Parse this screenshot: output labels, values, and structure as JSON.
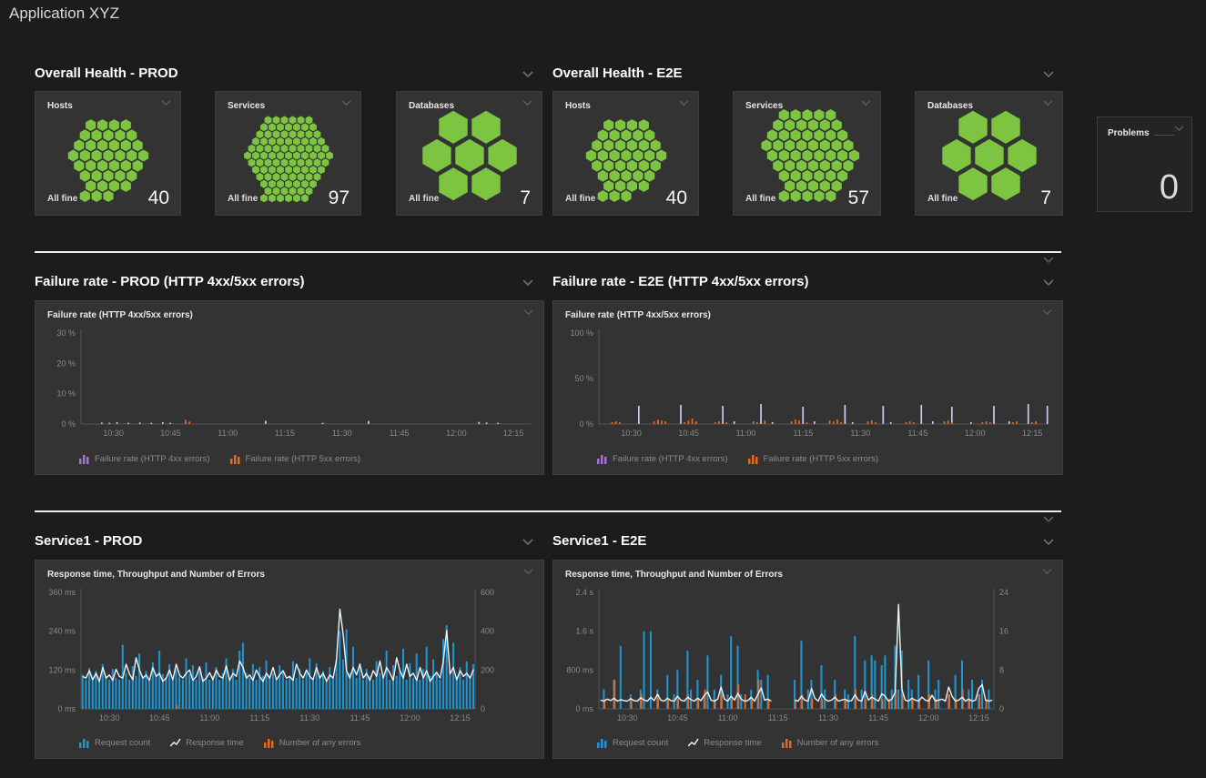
{
  "app": {
    "title": "Application XYZ"
  },
  "colors": {
    "green": "#7dc540",
    "blue": "#1f96d4",
    "orange": "#e8671e",
    "purple_bar": "#d3c8ee",
    "purple_icon": "#a573d6",
    "line": "#e9f4fa",
    "axis": "#565656",
    "tick_text": "#8a8a8a"
  },
  "sections": {
    "health_prod": {
      "title": "Overall Health - PROD",
      "tiles": [
        {
          "title": "Hosts",
          "status": "All fine",
          "count": 40
        },
        {
          "title": "Services",
          "status": "All fine",
          "count": 97
        },
        {
          "title": "Databases",
          "status": "All fine",
          "count": 7
        }
      ]
    },
    "health_e2e": {
      "title": "Overall Health - E2E",
      "tiles": [
        {
          "title": "Hosts",
          "status": "All fine",
          "count": 40
        },
        {
          "title": "Services",
          "status": "All fine",
          "count": 57
        },
        {
          "title": "Databases",
          "status": "All fine",
          "count": 7
        }
      ]
    },
    "problems": {
      "title": "Problems",
      "value": "0"
    },
    "failure_prod": {
      "title": "Failure rate - PROD (HTTP 4xx/5xx errors)"
    },
    "failure_e2e": {
      "title": "Failure rate - E2E (HTTP 4xx/5xx errors)"
    },
    "service_prod": {
      "title": "Service1 - PROD"
    },
    "service_e2e": {
      "title": "Service1 - E2E"
    }
  },
  "chart_data": [
    {
      "id": "failure_prod",
      "type": "bar",
      "kind": "failure",
      "title": "Failure rate (HTTP 4xx/5xx errors)",
      "x_start": "10:22",
      "x_end": "12:20",
      "buckets": 118,
      "x_ticks": [
        "10:30",
        "10:45",
        "11:00",
        "11:15",
        "11:30",
        "11:45",
        "12:00",
        "12:15"
      ],
      "x_tick_idx": [
        8,
        23,
        38,
        53,
        68,
        83,
        98,
        113
      ],
      "y_ticks": [
        "0 %",
        "10 %",
        "20 %",
        "30 %"
      ],
      "y_max": 30,
      "series": [
        {
          "name": "Failure rate (HTTP 4xx errors)",
          "color": "purple_bar",
          "points": [
            [
              5,
              0.5
            ],
            [
              7,
              0.4
            ],
            [
              9,
              0.6
            ],
            [
              12,
              0.4
            ],
            [
              15,
              0.5
            ],
            [
              18,
              0.4
            ],
            [
              21,
              0.6
            ],
            [
              23,
              0.4
            ],
            [
              48,
              1.1
            ],
            [
              63,
              0.4
            ],
            [
              75,
              1.0
            ],
            [
              104,
              0.7
            ],
            [
              106,
              0.5
            ],
            [
              109,
              0.4
            ]
          ]
        },
        {
          "name": "Failure rate (HTTP 5xx errors)",
          "color": "orange",
          "points": [
            [
              27,
              1.4
            ],
            [
              28,
              0.8
            ]
          ]
        }
      ],
      "legend": [
        {
          "label": "Failure rate (HTTP 4xx errors)",
          "icon": "bars",
          "color": "purple_icon"
        },
        {
          "label": "Failure rate (HTTP 5xx errors)",
          "icon": "bars",
          "color": "orange"
        }
      ]
    },
    {
      "id": "failure_e2e",
      "type": "bar",
      "kind": "failure",
      "title": "Failure rate (HTTP 4xx/5xx errors)",
      "x_start": "10:22",
      "x_end": "12:20",
      "buckets": 118,
      "x_ticks": [
        "10:30",
        "10:45",
        "11:00",
        "11:15",
        "11:30",
        "11:45",
        "12:00",
        "12:15"
      ],
      "x_tick_idx": [
        8,
        23,
        38,
        53,
        68,
        83,
        98,
        113
      ],
      "y_ticks": [
        "0 %",
        "50 %",
        "100 %"
      ],
      "y_max": 100,
      "series": [
        {
          "name": "Failure rate (HTTP 4xx errors)",
          "color": "purple_bar",
          "points": [
            [
              4,
              2
            ],
            [
              10,
              20
            ],
            [
              15,
              3
            ],
            [
              21,
              21
            ],
            [
              25,
              2
            ],
            [
              32,
              20
            ],
            [
              35,
              3
            ],
            [
              42,
              22
            ],
            [
              45,
              2
            ],
            [
              53,
              19
            ],
            [
              56,
              3
            ],
            [
              64,
              21
            ],
            [
              66,
              2
            ],
            [
              74,
              20
            ],
            [
              76,
              2
            ],
            [
              84,
              21
            ],
            [
              87,
              3
            ],
            [
              92,
              19
            ],
            [
              97,
              2
            ],
            [
              103,
              20
            ],
            [
              107,
              3
            ],
            [
              112,
              22
            ],
            [
              114,
              2
            ],
            [
              117,
              20
            ]
          ]
        },
        {
          "name": "Failure rate (HTTP 5xx errors)",
          "color": "orange",
          "points": [
            [
              3,
              2
            ],
            [
              4,
              3
            ],
            [
              5,
              2
            ],
            [
              14,
              3
            ],
            [
              15,
              5
            ],
            [
              16,
              4
            ],
            [
              17,
              3
            ],
            [
              22,
              2
            ],
            [
              23,
              4
            ],
            [
              24,
              6
            ],
            [
              25,
              3
            ],
            [
              30,
              2
            ],
            [
              31,
              3
            ],
            [
              33,
              2
            ],
            [
              40,
              3
            ],
            [
              41,
              2
            ],
            [
              43,
              4
            ],
            [
              50,
              3
            ],
            [
              51,
              5
            ],
            [
              52,
              4
            ],
            [
              54,
              2
            ],
            [
              60,
              4
            ],
            [
              61,
              3
            ],
            [
              62,
              5
            ],
            [
              63,
              2
            ],
            [
              70,
              3
            ],
            [
              71,
              4
            ],
            [
              72,
              2
            ],
            [
              80,
              2
            ],
            [
              81,
              3
            ],
            [
              82,
              2
            ],
            [
              90,
              3
            ],
            [
              91,
              4
            ],
            [
              92,
              2
            ],
            [
              100,
              2
            ],
            [
              101,
              3
            ],
            [
              102,
              2
            ],
            [
              108,
              2
            ],
            [
              109,
              3
            ],
            [
              113,
              2
            ],
            [
              114,
              3
            ]
          ]
        }
      ],
      "legend": [
        {
          "label": "Failure rate (HTTP 4xx errors)",
          "icon": "bars",
          "color": "purple_icon"
        },
        {
          "label": "Failure rate (HTTP 5xx errors)",
          "icon": "bars",
          "color": "orange"
        }
      ]
    },
    {
      "id": "service_prod",
      "type": "bar+line",
      "kind": "service",
      "title": "Response time, Throughput and Number of Errors",
      "x_start": "10:22",
      "x_end": "12:20",
      "buckets": 118,
      "x_ticks": [
        "10:30",
        "10:45",
        "11:00",
        "11:15",
        "11:30",
        "11:45",
        "12:00",
        "12:15"
      ],
      "x_tick_idx": [
        8,
        23,
        38,
        53,
        68,
        83,
        98,
        113
      ],
      "y_left_ticks": [
        "0 ms",
        "120 ms",
        "240 ms",
        "360 ms"
      ],
      "y_left_max": 360,
      "y_right_ticks": [
        "0",
        "200",
        "400",
        "600"
      ],
      "y_right_max": 600,
      "request_count": [
        175,
        150,
        210,
        160,
        195,
        150,
        230,
        170,
        150,
        205,
        160,
        150,
        330,
        185,
        150,
        220,
        170,
        285,
        160,
        195,
        150,
        240,
        170,
        300,
        180,
        160,
        230,
        150,
        205,
        170,
        150,
        260,
        180,
        225,
        150,
        195,
        160,
        240,
        150,
        170,
        215,
        150,
        185,
        260,
        160,
        205,
        150,
        300,
        340,
        185,
        160,
        230,
        150,
        215,
        170,
        250,
        160,
        185,
        150,
        225,
        195,
        150,
        170,
        245,
        160,
        205,
        150,
        185,
        260,
        150,
        235,
        170,
        195,
        150,
        215,
        160,
        250,
        400,
        255,
        410,
        185,
        320,
        160,
        235,
        150,
        205,
        170,
        150,
        245,
        185,
        160,
        300,
        150,
        225,
        170,
        195,
        310,
        150,
        235,
        160,
        285,
        150,
        205,
        320,
        170,
        255,
        185,
        150,
        360,
        430,
        195,
        340,
        160,
        215,
        150,
        245,
        170,
        230
      ],
      "response_time": [
        100,
        95,
        118,
        90,
        110,
        85,
        128,
        95,
        105,
        88,
        122,
        100,
        95,
        138,
        108,
        90,
        158,
        120,
        95,
        105,
        88,
        128,
        100,
        110,
        85,
        95,
        120,
        90,
        138,
        105,
        95,
        110,
        120,
        88,
        100,
        130,
        85,
        95,
        112,
        90,
        120,
        100,
        95,
        133,
        88,
        110,
        100,
        148,
        128,
        95,
        105,
        88,
        120,
        100,
        85,
        110,
        95,
        128,
        90,
        105,
        118,
        95,
        100,
        88,
        138,
        110,
        95,
        120,
        100,
        90,
        128,
        95,
        110,
        85,
        105,
        95,
        152,
        308,
        228,
        118,
        95,
        128,
        105,
        138,
        95,
        110,
        88,
        118,
        100,
        148,
        95,
        128,
        110,
        88,
        158,
        118,
        95,
        138,
        100,
        110,
        88,
        128,
        95,
        118,
        85,
        100,
        113,
        95,
        148,
        242,
        108,
        128,
        90,
        118,
        100,
        110,
        95,
        122
      ],
      "errors": [
        [
          28,
          18
        ]
      ],
      "legend": [
        {
          "label": "Request count",
          "icon": "bars",
          "color": "blue"
        },
        {
          "label": "Response time",
          "icon": "line",
          "color": "line"
        },
        {
          "label": "Number of any errors",
          "icon": "bars",
          "color": "orange"
        }
      ]
    },
    {
      "id": "service_e2e",
      "type": "bar+line",
      "kind": "service",
      "title": "Response time, Throughput and Number of Errors",
      "x_start": "10:22",
      "x_end": "12:20",
      "buckets": 118,
      "x_ticks": [
        "10:30",
        "10:45",
        "11:00",
        "11:15",
        "11:30",
        "11:45",
        "12:00",
        "12:15"
      ],
      "x_tick_idx": [
        8,
        23,
        38,
        53,
        68,
        83,
        98,
        113
      ],
      "y_left_ticks": [
        "0 ms",
        "800 ms",
        "1.6 s",
        "2.4 s"
      ],
      "y_left_max": 2400,
      "y_right_ticks": [
        "0",
        "8",
        "16",
        "24"
      ],
      "y_right_max": 24,
      "request_count": [
        0,
        4,
        0,
        0,
        6,
        0,
        13,
        0,
        0,
        3,
        0,
        0,
        4,
        16,
        0,
        16,
        0,
        4,
        0,
        0,
        7,
        0,
        3,
        8,
        0,
        0,
        12,
        4,
        0,
        6,
        0,
        3,
        11,
        0,
        4,
        0,
        7,
        0,
        3,
        15,
        0,
        13,
        3,
        0,
        0,
        4,
        0,
        8,
        6,
        0,
        7,
        0,
        0,
        0,
        0,
        0,
        0,
        0,
        6,
        0,
        14,
        0,
        4,
        6,
        0,
        0,
        9,
        4,
        0,
        0,
        6,
        0,
        0,
        4,
        3,
        0,
        15,
        0,
        4,
        10,
        0,
        11,
        10,
        0,
        9,
        11,
        0,
        4,
        13,
        4,
        12,
        0,
        6,
        4,
        0,
        7,
        0,
        0,
        10,
        0,
        4,
        6,
        0,
        0,
        3,
        0,
        7,
        0,
        10,
        0,
        4,
        6,
        0,
        3,
        6,
        0,
        4,
        0
      ],
      "response_time": [
        180,
        160,
        200,
        170,
        220,
        160,
        190,
        170,
        160,
        210,
        170,
        160,
        230,
        180,
        160,
        240,
        170,
        300,
        180,
        160,
        220,
        170,
        160,
        260,
        180,
        160,
        240,
        190,
        160,
        220,
        170,
        280,
        350,
        180,
        160,
        200,
        450,
        200,
        160,
        260,
        180,
        320,
        200,
        160,
        170,
        240,
        160,
        300,
        430,
        180,
        200,
        160,
        null,
        null,
        null,
        null,
        null,
        null,
        180,
        160,
        260,
        180,
        160,
        420,
        220,
        160,
        310,
        200,
        160,
        180,
        240,
        160,
        180,
        200,
        160,
        170,
        290,
        180,
        160,
        360,
        180,
        240,
        200,
        160,
        310,
        260,
        160,
        200,
        340,
        2150,
        400,
        180,
        160,
        220,
        180,
        160,
        240,
        180,
        160,
        280,
        160,
        180,
        200,
        160,
        450,
        260,
        160,
        180,
        240,
        160,
        200,
        160,
        180,
        420,
        500,
        180,
        160,
        180
      ],
      "errors": [
        [
          1,
          2
        ],
        [
          4,
          6
        ],
        [
          9,
          2
        ],
        [
          12,
          3
        ],
        [
          17,
          3
        ],
        [
          20,
          2
        ],
        [
          23,
          2
        ],
        [
          26,
          3
        ],
        [
          29,
          2
        ],
        [
          31,
          4
        ],
        [
          34,
          2
        ],
        [
          36,
          3
        ],
        [
          39,
          2
        ],
        [
          41,
          5
        ],
        [
          43,
          3
        ],
        [
          45,
          2
        ],
        [
          47,
          6
        ],
        [
          50,
          2
        ],
        [
          58,
          2
        ],
        [
          60,
          3
        ],
        [
          63,
          2
        ],
        [
          66,
          2
        ],
        [
          70,
          3
        ],
        [
          73,
          2
        ],
        [
          76,
          4
        ],
        [
          79,
          2
        ],
        [
          81,
          3
        ],
        [
          84,
          2
        ],
        [
          86,
          2
        ],
        [
          88,
          4
        ],
        [
          90,
          3
        ],
        [
          93,
          2
        ],
        [
          95,
          2
        ],
        [
          98,
          3
        ],
        [
          100,
          2
        ],
        [
          104,
          3
        ],
        [
          106,
          2
        ],
        [
          108,
          4
        ],
        [
          110,
          2
        ],
        [
          113,
          3
        ],
        [
          115,
          2
        ]
      ],
      "legend": [
        {
          "label": "Request count",
          "icon": "bars",
          "color": "blue"
        },
        {
          "label": "Response time",
          "icon": "line",
          "color": "line"
        },
        {
          "label": "Number of any errors",
          "icon": "bars",
          "color": "orange"
        }
      ]
    }
  ]
}
